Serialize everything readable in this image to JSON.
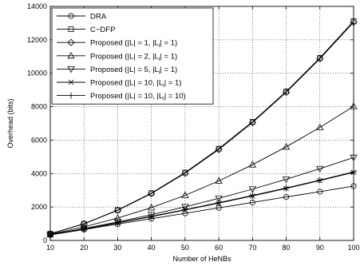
{
  "chart_data": {
    "type": "line",
    "title": "",
    "xlabel": "Number of HeNBs",
    "ylabel": "Overhead (bits)",
    "xlim": [
      10,
      100
    ],
    "ylim": [
      0,
      14000
    ],
    "x_ticks": [
      10,
      20,
      30,
      40,
      50,
      60,
      70,
      80,
      90,
      100
    ],
    "y_ticks": [
      0,
      2000,
      4000,
      6000,
      8000,
      10000,
      12000,
      14000
    ],
    "grid": true,
    "legend_position": "top-left",
    "x": [
      10,
      20,
      30,
      40,
      50,
      60,
      70,
      80,
      90,
      100
    ],
    "series": [
      {
        "name": "DRA",
        "marker": "circle",
        "values": [
          330,
          650,
          980,
          1300,
          1620,
          1950,
          2270,
          2600,
          2920,
          3250
        ]
      },
      {
        "name": "C−DFP",
        "marker": "square",
        "values": [
          400,
          1000,
          1820,
          2830,
          4060,
          5490,
          7100,
          8910,
          10920,
          13120
        ]
      },
      {
        "name": "Proposed (|L| = 1, |L_i| = 1)",
        "marker": "diamond",
        "values": [
          390,
          990,
          1800,
          2800,
          4020,
          5440,
          7050,
          8860,
          10870,
          13050
        ]
      },
      {
        "name": "Proposed (|L| = 2, |L_i| = 1)",
        "marker": "triangle-up",
        "values": [
          370,
          810,
          1340,
          1960,
          2700,
          3560,
          4530,
          5600,
          6760,
          8020
        ]
      },
      {
        "name": "Proposed (|L| = 5, |L_i| = 1)",
        "marker": "triangle-down",
        "values": [
          350,
          710,
          1110,
          1540,
          2010,
          2520,
          3070,
          3660,
          4290,
          4960
        ]
      },
      {
        "name": "Proposed (|L| = 10, |L_i| = 1)",
        "marker": "x",
        "values": [
          340,
          680,
          1040,
          1420,
          1820,
          2230,
          2660,
          3110,
          3580,
          4070
        ]
      },
      {
        "name": "Proposed (|L| = 10, |L_i| = 10)",
        "marker": "plus",
        "values": [
          345,
          690,
          1060,
          1440,
          1840,
          2260,
          2690,
          3140,
          3610,
          4100
        ]
      }
    ]
  }
}
